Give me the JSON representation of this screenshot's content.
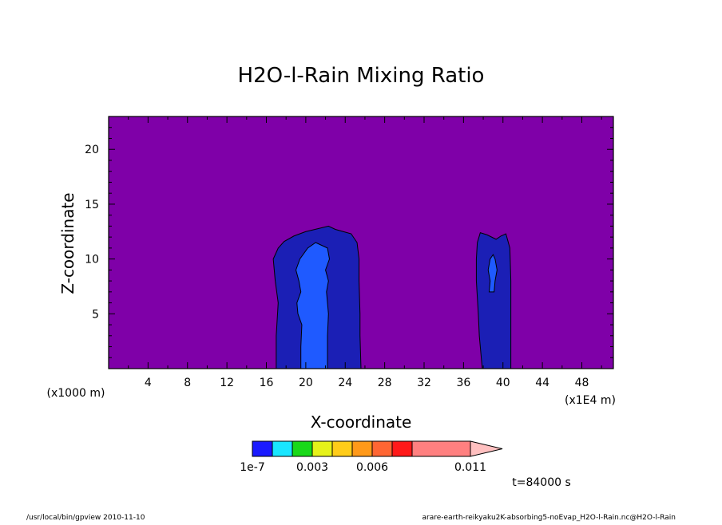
{
  "chart_data": {
    "type": "heatmap",
    "title": "H2O-l-Rain Mixing Ratio",
    "xlabel": "X-coordinate",
    "ylabel": "Z-coordinate",
    "x_unit_label": "(x1E4 m)",
    "y_unit_label": "(x1000 m)",
    "xlim": [
      0,
      51.2
    ],
    "ylim": [
      0,
      23
    ],
    "x_ticks": [
      4,
      8,
      12,
      16,
      20,
      24,
      28,
      32,
      36,
      40,
      44,
      48
    ],
    "y_ticks": [
      5,
      10,
      15,
      20
    ],
    "background_color": "#7f00a8",
    "regions": [
      {
        "name": "cloud-a-outer",
        "level": "1e-7",
        "color": "#1b1fb5",
        "x_left_edge": [
          [
            0,
            17.0
          ],
          [
            3,
            17.0
          ],
          [
            6,
            17.2
          ],
          [
            8,
            16.9
          ],
          [
            10,
            16.7
          ],
          [
            11,
            17.2
          ],
          [
            11.6,
            17.8
          ],
          [
            12.1,
            18.8
          ],
          [
            12.5,
            20.0
          ],
          [
            12.8,
            21.4
          ],
          [
            13.0,
            22.3
          ],
          [
            12.7,
            23.0
          ],
          [
            12.5,
            23.8
          ]
        ],
        "x_right_edge": [
          [
            12.5,
            23.8
          ],
          [
            12.3,
            24.6
          ],
          [
            11.5,
            25.2
          ],
          [
            10,
            25.4
          ],
          [
            8,
            25.4
          ],
          [
            5,
            25.5
          ],
          [
            3,
            25.5
          ],
          [
            0,
            25.6
          ]
        ]
      },
      {
        "name": "cloud-a-inner",
        "level": "0.003",
        "color": "#1f5aff",
        "x_left_edge": [
          [
            0,
            19.5
          ],
          [
            2,
            19.5
          ],
          [
            4,
            19.6
          ],
          [
            5,
            19.2
          ],
          [
            6,
            19.1
          ],
          [
            7,
            19.5
          ],
          [
            8,
            19.3
          ],
          [
            9,
            19.0
          ],
          [
            10,
            19.4
          ],
          [
            11,
            20.2
          ],
          [
            11.5,
            21.0
          ]
        ],
        "x_right_edge": [
          [
            11.5,
            21.0
          ],
          [
            11,
            22.2
          ],
          [
            10,
            22.4
          ],
          [
            9,
            22.0
          ],
          [
            8,
            22.3
          ],
          [
            7,
            22.1
          ],
          [
            5,
            22.3
          ],
          [
            3,
            22.2
          ],
          [
            0,
            22.2
          ]
        ]
      },
      {
        "name": "cloud-b-outer",
        "level": "1e-7",
        "color": "#1b1fb5",
        "x_left_edge": [
          [
            0,
            37.9
          ],
          [
            3,
            37.6
          ],
          [
            5,
            37.5
          ],
          [
            8,
            37.3
          ],
          [
            10,
            37.3
          ],
          [
            11.5,
            37.4
          ],
          [
            12.4,
            37.7
          ]
        ],
        "x_right_edge": [
          [
            12.4,
            37.7
          ],
          [
            12.2,
            38.4
          ],
          [
            11.8,
            39.3
          ],
          [
            12.1,
            39.8
          ],
          [
            12.3,
            40.3
          ],
          [
            11,
            40.7
          ],
          [
            8,
            40.8
          ],
          [
            5,
            40.8
          ],
          [
            2,
            40.8
          ],
          [
            0,
            40.8
          ]
        ]
      },
      {
        "name": "cloud-b-inner",
        "level": "0.003",
        "color": "#1f5aff",
        "x_left_edge": [
          [
            7,
            38.6
          ],
          [
            8,
            38.7
          ],
          [
            9,
            38.5
          ],
          [
            10,
            38.7
          ],
          [
            10.4,
            39.0
          ]
        ],
        "x_right_edge": [
          [
            10.4,
            39.0
          ],
          [
            10,
            39.2
          ],
          [
            9,
            39.4
          ],
          [
            8,
            39.2
          ],
          [
            7,
            39.1
          ]
        ]
      }
    ],
    "colorbar": {
      "levels": [
        "1e-7",
        "0.003",
        "0.006",
        "0.011"
      ],
      "colors": [
        "#1a1aff",
        "#19e6ff",
        "#19d919",
        "#e6f219",
        "#ffcc19",
        "#ff9919",
        "#ff6633",
        "#ff1919",
        "#ff8080",
        "#ffc0c0"
      ]
    }
  },
  "annotations": {
    "time_label": "t=84000 s",
    "footer_left": "/usr/local/bin/gpview  2010-11-10",
    "footer_right": "arare-earth-reikyaku2K-absorbing5-noEvap_H2O-l-Rain.nc@H2O-l-Rain"
  }
}
